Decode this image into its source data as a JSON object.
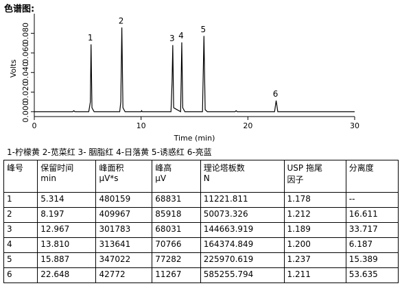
{
  "page_title": "色谱图:",
  "chart_data": {
    "type": "line",
    "x_label": "Time (min)",
    "y_label": "Volts",
    "xlim": [
      0,
      30
    ],
    "xticks": [
      0,
      10,
      20,
      30
    ],
    "ylim": [
      -0.005,
      0.1
    ],
    "yticks": [
      {
        "value": 0,
        "label": "0.000"
      },
      {
        "value": 0.02,
        "label": "0.020"
      },
      {
        "value": 0.04,
        "label": "0.040"
      },
      {
        "value": 0.06,
        "label": "0.060"
      },
      {
        "value": 0.08,
        "label": "0.080"
      }
    ],
    "series": [
      {
        "color": "#000000",
        "x": [
          0,
          3.6,
          3.7,
          3.8,
          5.1,
          5.25,
          5.314,
          5.4,
          5.6,
          8.0,
          8.1,
          8.197,
          8.3,
          8.5,
          10,
          10.05,
          10.1,
          12.8,
          12.9,
          12.967,
          13.05,
          13.7,
          13.75,
          13.81,
          13.9,
          14.1,
          15.75,
          15.887,
          16.0,
          16.2,
          18.8,
          18.9,
          19,
          22.5,
          22.648,
          22.8,
          30
        ],
        "values": [
          0,
          0,
          0.001,
          0,
          0,
          0.01,
          0.0688,
          0.004,
          0,
          0,
          0.01,
          0.0859,
          0.004,
          0,
          0,
          0.001,
          0,
          0,
          0.03,
          0.068,
          0.004,
          0,
          0.03,
          0.0708,
          0.004,
          0,
          0,
          0.0773,
          0.002,
          0,
          0,
          0.001,
          0,
          0,
          0.0113,
          0,
          0
        ]
      }
    ],
    "annotations": [
      {
        "text": "1",
        "x": 5.314,
        "y": 0.0688
      },
      {
        "text": "2",
        "x": 8.197,
        "y": 0.0859
      },
      {
        "text": "3",
        "x": 12.967,
        "y": 0.068
      },
      {
        "text": "4",
        "x": 13.81,
        "y": 0.0708
      },
      {
        "text": "5",
        "x": 15.887,
        "y": 0.0773
      },
      {
        "text": "6",
        "x": 22.648,
        "y": 0.0113
      }
    ]
  },
  "peak_legend": "1-柠檬黄 2-苋菜红 3- 胭脂红 4-日落黄 5-诱惑红 6-亮蓝",
  "table": {
    "header": [
      [
        "峰号"
      ],
      [
        "保留时间",
        "min"
      ],
      [
        "峰面积",
        "µV*s"
      ],
      [
        "峰高",
        "µV"
      ],
      [
        "理论塔板数",
        "N"
      ],
      [
        "USP 拖尾",
        "因子"
      ],
      [
        "分离度"
      ]
    ],
    "rows": [
      [
        "1",
        "5.314",
        "480159",
        "68831",
        "11221.811",
        "1.178",
        "--"
      ],
      [
        "2",
        "8.197",
        "409967",
        "85918",
        "50073.326",
        "1.212",
        "16.611"
      ],
      [
        "3",
        "12.967",
        "301783",
        "68031",
        "144663.919",
        "1.189",
        "33.717"
      ],
      [
        "4",
        "13.810",
        "313641",
        "70766",
        "164374.849",
        "1.200",
        "6.187"
      ],
      [
        "5",
        "15.887",
        "347022",
        "77282",
        "225970.619",
        "1.237",
        "15.389"
      ],
      [
        "6",
        "22.648",
        "42772",
        "11267",
        "585255.794",
        "1.211",
        "53.635"
      ]
    ]
  }
}
